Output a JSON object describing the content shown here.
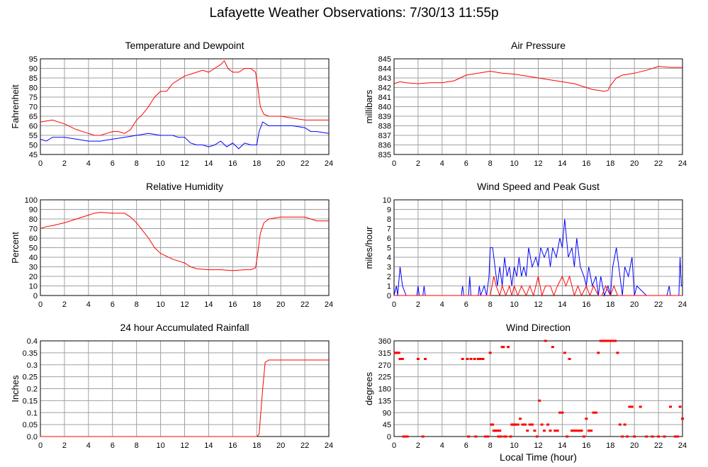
{
  "title": "Lafayette Weather Observations: 7/30/13 11:55p",
  "chart_data": [
    {
      "id": "temp",
      "type": "line",
      "title": "Temperature and Dewpoint",
      "ylabel": "Fahrenheit",
      "xlabel": "",
      "xlim": [
        0,
        24
      ],
      "ylim": [
        45,
        95
      ],
      "xticks": [
        0,
        2,
        4,
        6,
        8,
        10,
        12,
        14,
        16,
        18,
        20,
        22,
        24
      ],
      "yticks": [
        45,
        50,
        55,
        60,
        65,
        70,
        75,
        80,
        85,
        90,
        95
      ],
      "ytick_labels": [
        "45",
        "50",
        "55",
        "60",
        "65",
        "70",
        "75",
        "80",
        "85",
        "90",
        "95"
      ],
      "grid": true,
      "series": [
        {
          "color": "#ff0000",
          "x": [
            0,
            1,
            2,
            3,
            4,
            4.5,
            5,
            5.5,
            6,
            6.5,
            7,
            7.5,
            8,
            8.5,
            9,
            9.5,
            10,
            10.5,
            11,
            11.5,
            12,
            12.5,
            13,
            13.5,
            14,
            14.5,
            15,
            15.3,
            15.6,
            16,
            16.5,
            17,
            17.5,
            17.9,
            18.1,
            18.3,
            18.6,
            19,
            20,
            21,
            22,
            23,
            24
          ],
          "y": [
            62,
            63,
            61,
            58,
            56,
            55,
            55,
            56,
            57,
            57,
            56,
            58,
            63,
            66,
            70,
            75,
            78,
            78,
            82,
            84,
            86,
            87,
            88,
            89,
            88,
            90,
            92,
            94,
            90,
            88,
            88,
            90,
            90,
            88,
            80,
            70,
            66,
            65,
            65,
            64,
            63,
            63,
            63
          ]
        },
        {
          "color": "#0000ff",
          "x": [
            0,
            0.5,
            1,
            2,
            3,
            4,
            4.5,
            5,
            6,
            7,
            8,
            9,
            10,
            11,
            11.5,
            12,
            12.5,
            13,
            13.5,
            14,
            14.5,
            15,
            15.5,
            16,
            16.5,
            17,
            17.5,
            18,
            18.2,
            18.5,
            19,
            20,
            21,
            22,
            22.5,
            23,
            24
          ],
          "y": [
            53,
            52,
            54,
            54,
            53,
            52,
            52,
            52,
            53,
            54,
            55,
            56,
            55,
            55,
            54,
            54,
            51,
            50,
            50,
            49,
            50,
            52,
            49,
            51,
            48,
            51,
            50,
            50,
            57,
            62,
            60,
            60,
            60,
            59,
            57,
            57,
            56
          ]
        }
      ]
    },
    {
      "id": "pressure",
      "type": "line",
      "title": "Air Pressure",
      "ylabel": "millibars",
      "xlabel": "",
      "xlim": [
        0,
        24
      ],
      "ylim": [
        835,
        845
      ],
      "xticks": [
        0,
        2,
        4,
        6,
        8,
        10,
        12,
        14,
        16,
        18,
        20,
        22,
        24
      ],
      "yticks": [
        835,
        836,
        837,
        838,
        839,
        840,
        841,
        842,
        843,
        844,
        845
      ],
      "ytick_labels": [
        "835",
        "836",
        "837",
        "838",
        "839",
        "840",
        "841",
        "842",
        "843",
        "844",
        "845"
      ],
      "grid": true,
      "series": [
        {
          "color": "#ff0000",
          "x": [
            0,
            0.5,
            1,
            2,
            3,
            4,
            5,
            5.5,
            6,
            7,
            8,
            8.5,
            9,
            10,
            11,
            12,
            13,
            14,
            15,
            16,
            16.5,
            17,
            17.5,
            17.8,
            18,
            18.5,
            19,
            20,
            21,
            22,
            23,
            24
          ],
          "y": [
            842.4,
            842.6,
            842.5,
            842.4,
            842.5,
            842.5,
            842.7,
            843.0,
            843.3,
            843.5,
            843.7,
            843.6,
            843.5,
            843.4,
            843.2,
            843.0,
            842.8,
            842.6,
            842.4,
            842.0,
            841.8,
            841.7,
            841.6,
            841.7,
            842.2,
            843.0,
            843.3,
            843.5,
            843.8,
            844.2,
            844.1,
            844.1
          ]
        }
      ]
    },
    {
      "id": "humidity",
      "type": "line",
      "title": "Relative Humidity",
      "ylabel": "Percent",
      "xlabel": "",
      "xlim": [
        0,
        24
      ],
      "ylim": [
        0,
        100
      ],
      "xticks": [
        0,
        2,
        4,
        6,
        8,
        10,
        12,
        14,
        16,
        18,
        20,
        22,
        24
      ],
      "yticks": [
        0,
        10,
        20,
        30,
        40,
        50,
        60,
        70,
        80,
        90,
        100
      ],
      "ytick_labels": [
        "0",
        "10",
        "20",
        "30",
        "40",
        "50",
        "60",
        "70",
        "80",
        "90",
        "100"
      ],
      "grid": true,
      "series": [
        {
          "color": "#ff0000",
          "x": [
            0,
            0.5,
            1,
            2,
            3,
            4,
            4.5,
            5,
            6,
            7,
            7.5,
            8,
            8.5,
            9,
            9.5,
            10,
            11,
            12,
            12.5,
            13,
            14,
            15,
            16,
            17,
            17.5,
            17.9,
            18.1,
            18.3,
            18.6,
            19,
            20,
            21,
            22,
            23,
            24
          ],
          "y": [
            70,
            72,
            73,
            76,
            80,
            84,
            86,
            87,
            86,
            86,
            82,
            76,
            68,
            60,
            50,
            44,
            38,
            34,
            30,
            28,
            27,
            27,
            26,
            27,
            27,
            29,
            45,
            65,
            76,
            80,
            82,
            82,
            82,
            78,
            78
          ]
        }
      ]
    },
    {
      "id": "wind",
      "type": "line",
      "title": "Wind Speed and Peak Gust",
      "ylabel": "miles/hour",
      "xlabel": "",
      "xlim": [
        0,
        24
      ],
      "ylim": [
        0,
        10
      ],
      "xticks": [
        0,
        2,
        4,
        6,
        8,
        10,
        12,
        14,
        16,
        18,
        20,
        22,
        24
      ],
      "yticks": [
        0,
        1,
        2,
        3,
        4,
        5,
        6,
        7,
        8,
        9,
        10
      ],
      "ytick_labels": [
        "0",
        "1",
        "2",
        "3",
        "4",
        "5",
        "6",
        "7",
        "8",
        "9",
        "10"
      ],
      "grid": true,
      "series": [
        {
          "color": "#0000ff",
          "x": [
            0,
            0.2,
            0.3,
            0.5,
            0.7,
            1,
            1.5,
            1.9,
            2,
            2.1,
            2.4,
            2.5,
            2.6,
            3,
            5,
            5.6,
            5.7,
            5.8,
            6.2,
            6.3,
            6.4,
            7,
            7.1,
            7.2,
            7.5,
            7.7,
            7.9,
            8,
            8.2,
            8.5,
            8.6,
            8.8,
            9,
            9.2,
            9.4,
            9.6,
            9.8,
            10,
            10.2,
            10.4,
            10.6,
            10.8,
            11,
            11.2,
            11.5,
            11.8,
            12,
            12.2,
            12.5,
            12.8,
            13,
            13.2,
            13.5,
            13.8,
            14,
            14.2,
            14.5,
            14.8,
            15,
            15.2,
            15.5,
            15.8,
            16,
            16.2,
            16.5,
            16.8,
            17,
            17.2,
            17.5,
            17.8,
            18,
            18.2,
            18.5,
            18.7,
            19,
            19.2,
            19.5,
            19.8,
            20,
            20.2,
            21,
            22,
            22.5,
            22.7,
            22.9,
            23,
            23.5,
            23.7,
            23.8,
            23.9,
            24
          ],
          "y": [
            0,
            1,
            0,
            3,
            1,
            0,
            0,
            0,
            1,
            0,
            0,
            1,
            0,
            0,
            0,
            0,
            1,
            0,
            0,
            2,
            0,
            0,
            1,
            0,
            1,
            0,
            2,
            5,
            5,
            2,
            1,
            3,
            1,
            4,
            2,
            3,
            1,
            3,
            2,
            4,
            2,
            3,
            2,
            5,
            3,
            4,
            3,
            5,
            4,
            5,
            3,
            5,
            4,
            6,
            5,
            8,
            4,
            5,
            3,
            6,
            3,
            2,
            1,
            3,
            1,
            2,
            0,
            2,
            0,
            1,
            0,
            3,
            5,
            3,
            0,
            3,
            2,
            4,
            0,
            1,
            0,
            0,
            0,
            0,
            1,
            0,
            0,
            0,
            4,
            1,
            1
          ]
        },
        {
          "color": "#ff0000",
          "x": [
            0,
            8,
            8.3,
            8.5,
            8.8,
            9,
            9.3,
            9.6,
            9.8,
            10,
            10.3,
            10.6,
            11,
            11.3,
            11.6,
            12,
            12.3,
            12.6,
            13,
            13.3,
            13.6,
            14,
            14.3,
            14.6,
            15,
            15.3,
            15.6,
            16,
            16.3,
            16.6,
            17,
            17.3,
            17.6,
            18,
            18.3,
            18.6,
            19,
            20,
            23.8,
            24
          ],
          "y": [
            0,
            0,
            2,
            1,
            0,
            1,
            0,
            1,
            0,
            1,
            0,
            1,
            0,
            1,
            0,
            2,
            0,
            1,
            1,
            0,
            1,
            2,
            1,
            2,
            0,
            1,
            0,
            1,
            0,
            1,
            0,
            0,
            1,
            0,
            1,
            0,
            0,
            0,
            0,
            0
          ]
        }
      ]
    },
    {
      "id": "rain",
      "type": "line",
      "title": "24 hour Accumulated Rainfall",
      "ylabel": "Inches",
      "xlabel": "",
      "xlim": [
        0,
        24
      ],
      "ylim": [
        0,
        0.4
      ],
      "xticks": [
        0,
        2,
        4,
        6,
        8,
        10,
        12,
        14,
        16,
        18,
        20,
        22,
        24
      ],
      "yticks": [
        0,
        0.05,
        0.1,
        0.15,
        0.2,
        0.25,
        0.3,
        0.35,
        0.4
      ],
      "ytick_labels": [
        "0.0",
        "0.05",
        "0.1",
        "0.15",
        "0.2",
        "0.25",
        "0.3",
        "0.35",
        "0.4"
      ],
      "grid": true,
      "series": [
        {
          "color": "#ff0000",
          "x": [
            0,
            18.0,
            18.2,
            18.5,
            18.7,
            19.0,
            24
          ],
          "y": [
            0,
            0,
            0.01,
            0.2,
            0.31,
            0.32,
            0.32
          ]
        }
      ]
    },
    {
      "id": "winddir",
      "type": "scatter",
      "title": "Wind Direction",
      "ylabel": "degrees",
      "xlabel": "Local Time (hour)",
      "xlim": [
        0,
        24
      ],
      "ylim": [
        0,
        360
      ],
      "xticks": [
        0,
        2,
        4,
        6,
        8,
        10,
        12,
        14,
        16,
        18,
        20,
        22,
        24
      ],
      "yticks": [
        0,
        45,
        90,
        135,
        180,
        225,
        270,
        315,
        360
      ],
      "ytick_labels": [
        "0",
        "45",
        "90",
        "135",
        "180",
        "225",
        "270",
        "315",
        "360"
      ],
      "grid": true,
      "series": [
        {
          "color": "#ff0000",
          "x": [
            0.1,
            0.2,
            0.3,
            0.4,
            0.5,
            0.6,
            0.7,
            0.8,
            0.9,
            1.0,
            1.1,
            2.0,
            2.4,
            2.6,
            5.7,
            6.1,
            6.2,
            6.4,
            6.7,
            6.8,
            7.0,
            7.2,
            7.4,
            7.6,
            7.8,
            8.0,
            8.1,
            8.2,
            8.3,
            8.4,
            8.5,
            8.6,
            8.7,
            8.8,
            8.9,
            9.0,
            9.1,
            9.2,
            9.3,
            9.5,
            9.7,
            9.8,
            9.9,
            10.0,
            10.1,
            10.3,
            10.5,
            10.7,
            10.9,
            11.1,
            11.3,
            11.5,
            11.7,
            11.9,
            12.1,
            12.3,
            12.5,
            12.6,
            12.8,
            13.0,
            13.2,
            13.4,
            13.6,
            13.8,
            14.0,
            14.2,
            14.4,
            14.6,
            14.8,
            15.0,
            15.2,
            15.4,
            15.6,
            15.8,
            16.0,
            16.2,
            16.4,
            16.6,
            16.8,
            17.0,
            17.2,
            17.4,
            17.6,
            17.8,
            18.0,
            18.2,
            18.4,
            18.6,
            18.8,
            19.0,
            19.2,
            19.4,
            19.6,
            19.8,
            20.0,
            20.5,
            21.0,
            21.5,
            22.0,
            22.5,
            23.0,
            23.4,
            23.6,
            23.8,
            24.0
          ],
          "y": [
            315,
            315,
            315,
            315,
            292,
            292,
            292,
            0,
            0,
            0,
            0,
            292,
            0,
            292,
            292,
            292,
            0,
            292,
            292,
            0,
            292,
            292,
            292,
            0,
            0,
            315,
            45,
            45,
            22,
            22,
            22,
            22,
            0,
            22,
            0,
            337,
            337,
            0,
            0,
            337,
            0,
            45,
            45,
            45,
            45,
            45,
            67,
            45,
            45,
            22,
            45,
            45,
            22,
            0,
            135,
            45,
            22,
            360,
            45,
            22,
            337,
            22,
            22,
            90,
            90,
            315,
            0,
            292,
            22,
            22,
            22,
            22,
            22,
            0,
            67,
            22,
            22,
            90,
            90,
            315,
            360,
            360,
            360,
            360,
            360,
            360,
            360,
            315,
            45,
            0,
            45,
            0,
            112,
            112,
            0,
            112,
            0,
            0,
            0,
            0,
            112,
            0,
            0,
            112,
            67
          ]
        }
      ]
    }
  ]
}
